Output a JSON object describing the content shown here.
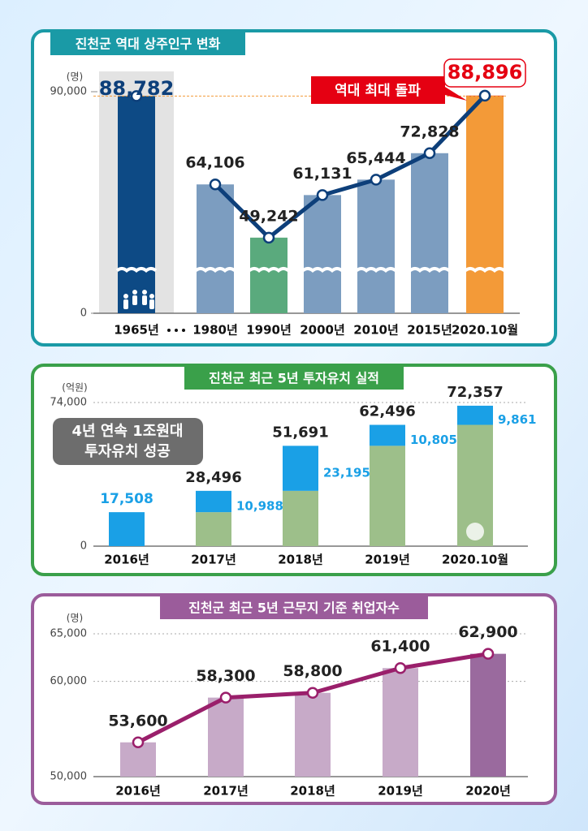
{
  "chart_data": [
    {
      "type": "bar_line",
      "title": "진천군 역대 상주인구 변화",
      "y_unit": "(명)",
      "categories": [
        "1965년",
        "1980년",
        "1990년",
        "2000년",
        "2010년",
        "2015년",
        "2020.10월"
      ],
      "values": [
        88782,
        64106,
        49242,
        61131,
        65444,
        72828,
        88896
      ],
      "value_labels": [
        "88,782",
        "64,106",
        "49,242",
        "61,131",
        "65,444",
        "72,828",
        "88,896"
      ],
      "colors": [
        "#0d4a85",
        "#7c9dc0",
        "#5aaa7d",
        "#7c9dc0",
        "#7c9dc0",
        "#7c9dc0",
        "#f39a38"
      ],
      "highlight_color": "#e50012",
      "line_color": "#0d3f7a",
      "ylim": [
        0,
        90000
      ],
      "yticks": [
        0,
        {
          "value": 90000,
          "label": "90,000"
        }
      ],
      "axis_break": true,
      "annotation": "역대 최대 돌파"
    },
    {
      "type": "stacked_bar",
      "title": "진천군 최근 5년 투자유치 실적",
      "y_unit": "(억원)",
      "categories": [
        "2016년",
        "2017년",
        "2018년",
        "2019년",
        "2020.10월"
      ],
      "series": [
        {
          "color": "#9dbf8a",
          "values": [
            null,
            17508,
            28496,
            51691,
            62496
          ]
        },
        {
          "color": "#1aa0e6",
          "values": [
            17508,
            10988,
            23195,
            10805,
            9861
          ],
          "value_labels": [
            "17,508",
            "10,988",
            "23,195",
            "10,805",
            "9,861"
          ]
        }
      ],
      "totals": [
        null,
        28496,
        51691,
        62496,
        72357
      ],
      "total_labels": [
        null,
        "28,496",
        "51,691",
        "62,496",
        "72,357"
      ],
      "ylim": [
        0,
        74000
      ],
      "yticks": [
        0,
        {
          "value": 74000,
          "label": "74,000"
        }
      ],
      "annotation": [
        "4년 연속 1조원대",
        "투자유치 성공"
      ]
    },
    {
      "type": "bar_line",
      "title": "진천군 최근 5년 근무지 기준 취업자수",
      "y_unit": "(명)",
      "categories": [
        "2016년",
        "2017년",
        "2018년",
        "2019년",
        "2020년"
      ],
      "values": [
        53600,
        58300,
        58800,
        61400,
        62900
      ],
      "value_labels": [
        "53,600",
        "58,300",
        "58,800",
        "61,400",
        "62,900"
      ],
      "colors": [
        "#c7aac8",
        "#c7aac8",
        "#c7aac8",
        "#c7aac8",
        "#9a6a9e"
      ],
      "line_color": "#9a1f6b",
      "ylim": [
        50000,
        65000
      ],
      "yticks": [
        {
          "value": 50000,
          "label": "50,000"
        },
        {
          "value": 60000,
          "label": "60,000"
        },
        {
          "value": 65000,
          "label": "65,000"
        }
      ],
      "grid": true
    }
  ]
}
